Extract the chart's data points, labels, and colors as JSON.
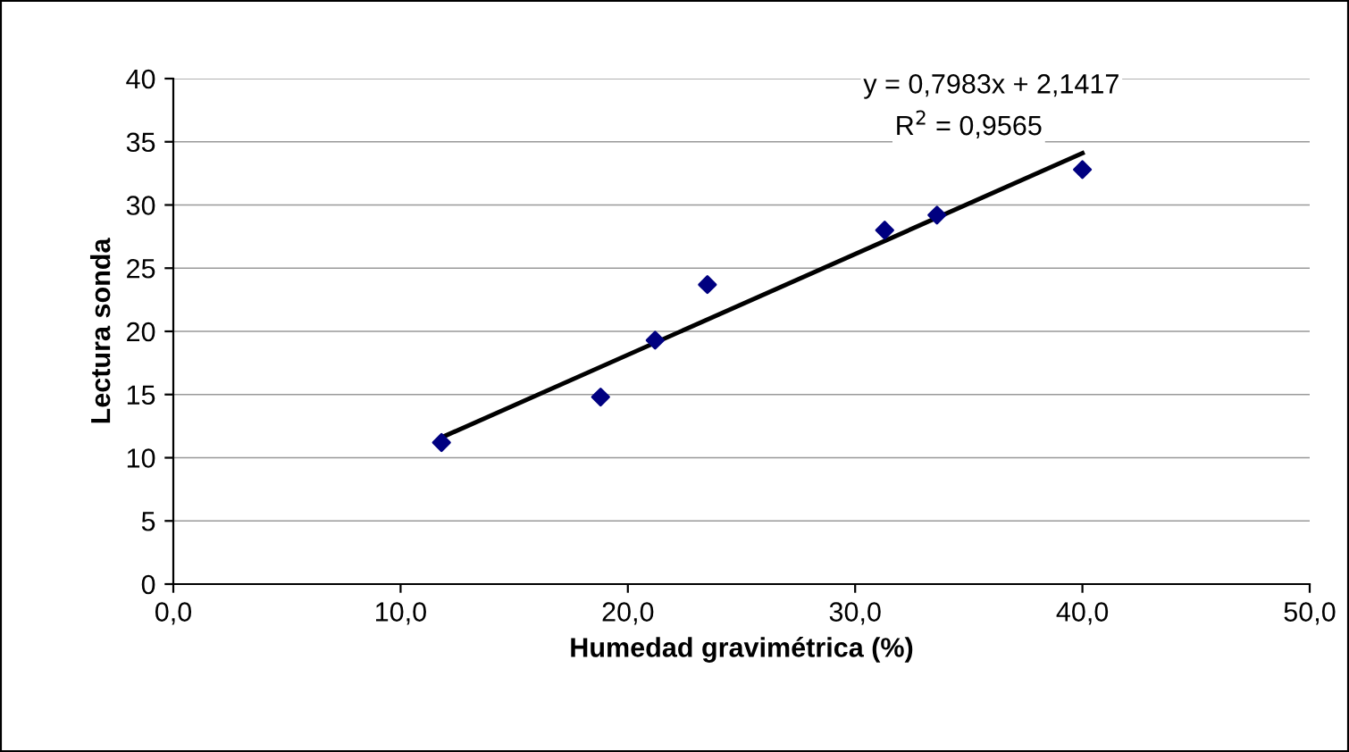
{
  "chart_data": {
    "type": "scatter",
    "xlabel": "Humedad gravimétrica (%)",
    "ylabel": "Lectura sonda",
    "series": [
      {
        "color": "#000080",
        "marker": "diamond",
        "x": [
          11.8,
          18.8,
          21.2,
          23.5,
          31.3,
          33.6,
          40.0
        ],
        "values": [
          11.2,
          14.8,
          19.3,
          23.7,
          28.0,
          29.2,
          32.8
        ]
      },
      {
        "type": "line",
        "color": "#000000",
        "marker": "none",
        "line_style": "solid",
        "x": [
          11.8,
          40.0
        ],
        "values": [
          11.6,
          34.1
        ]
      }
    ],
    "annotations": [
      "y = 0,7983x + 2,1417",
      "R$^{2}$ = 0,9565"
    ],
    "xlim": [
      0,
      50
    ],
    "xticks": [
      {
        "value": 0,
        "label": "0,0"
      },
      {
        "value": 10,
        "label": "10,0"
      },
      {
        "value": 20,
        "label": "20,0"
      },
      {
        "value": 30,
        "label": "30,0"
      },
      {
        "value": 40,
        "label": "40,0"
      },
      {
        "value": 50,
        "label": "50,0"
      }
    ],
    "ylim": [
      0,
      40
    ],
    "yticks": [
      0,
      5,
      10,
      15,
      20,
      25,
      30,
      35,
      40
    ],
    "grid": "y",
    "legend": false
  }
}
